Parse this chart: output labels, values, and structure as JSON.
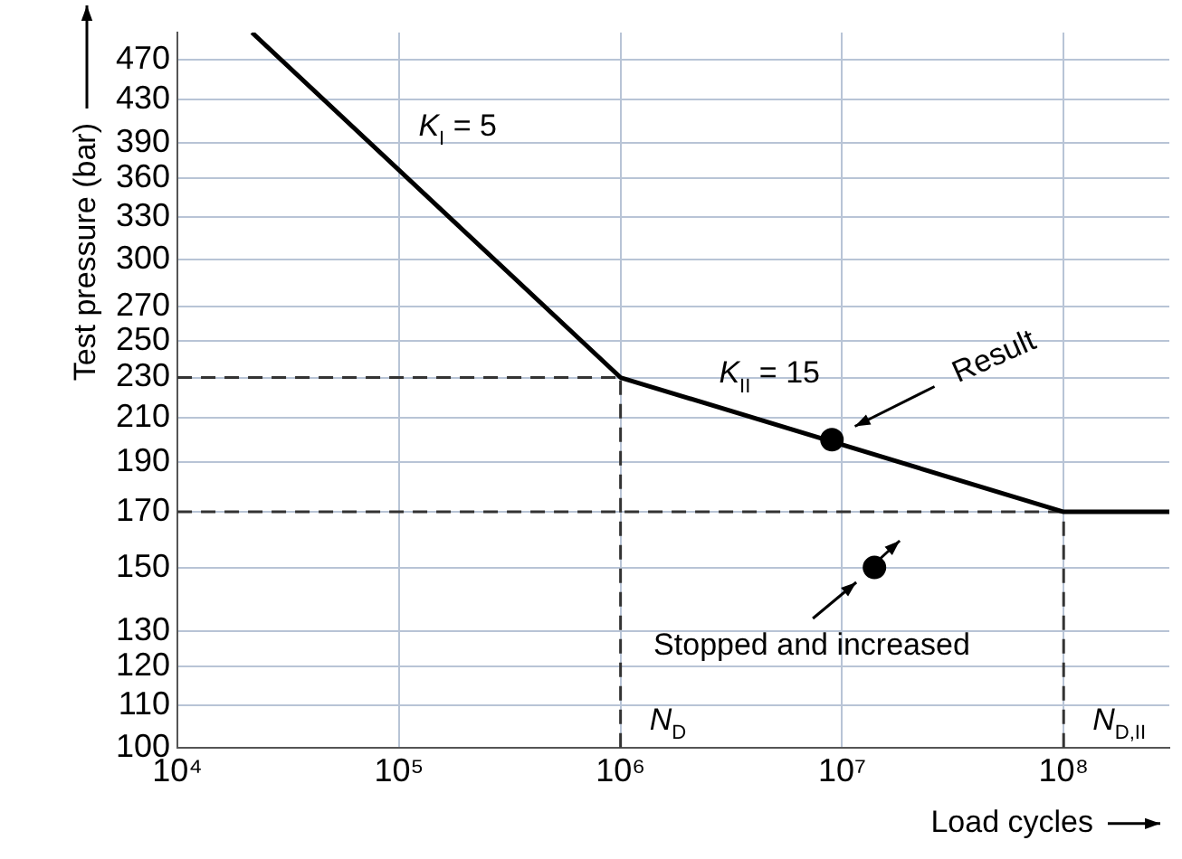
{
  "chart_data": {
    "type": "line",
    "xlabel": "Load cycles",
    "ylabel": "Test pressure (bar)",
    "log": "xy",
    "grid": true,
    "legend": false,
    "marker": "none",
    "line_style": "solid",
    "xlim": [
      10000,
      300000000
    ],
    "ylim": [
      100,
      500
    ],
    "xticks": [
      {
        "value": 10000,
        "label": "10⁴"
      },
      {
        "value": 100000,
        "label": "10⁵"
      },
      {
        "value": 1000000,
        "label": "10⁶"
      },
      {
        "value": 10000000,
        "label": "10⁷"
      },
      {
        "value": 100000000,
        "label": "10⁸"
      }
    ],
    "yticks": [
      100,
      110,
      120,
      130,
      150,
      170,
      190,
      210,
      230,
      250,
      270,
      300,
      330,
      360,
      390,
      430,
      470
    ],
    "series": [
      {
        "color": "#000000",
        "x": [
          21700,
          1000000,
          100000000,
          300000000
        ],
        "values": [
          500,
          230,
          170,
          170
        ]
      },
      {
        "type": "scatter",
        "color": "#000000",
        "marker": "circle",
        "x": [
          9000000,
          14000000
        ],
        "values": [
          200,
          150
        ]
      }
    ],
    "ref_lines": [
      {
        "axis": "y",
        "value": 230,
        "line_style": "dashed",
        "color": "#333333"
      },
      {
        "axis": "y",
        "value": 170,
        "line_style": "dashed",
        "color": "#333333"
      },
      {
        "axis": "x",
        "value": 1000000,
        "label": "N$_{D}$",
        "line_style": "dashed",
        "color": "#333333"
      },
      {
        "axis": "x",
        "value": 100000000,
        "label": "N$_{D,II}$",
        "line_style": "dashed",
        "color": "#333333"
      }
    ],
    "annotations": [
      "K$_{I}$ = 5",
      "K$_{II}$ = 15",
      "Result",
      "Stopped and increased"
    ]
  }
}
